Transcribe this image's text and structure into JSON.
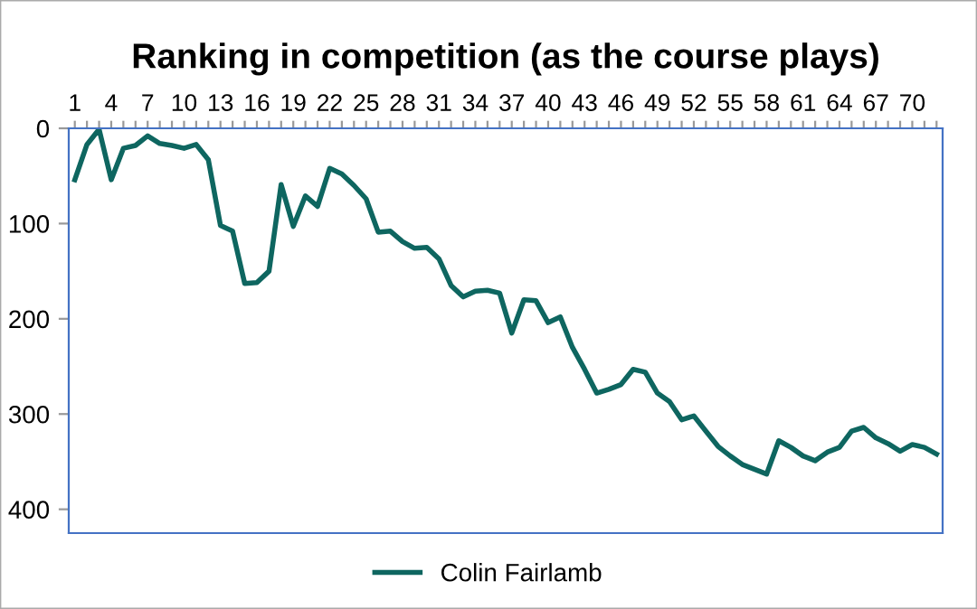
{
  "chart_data": {
    "type": "line",
    "title": "Ranking in competition (as the course plays)",
    "categories": [
      "1",
      null,
      null,
      "4",
      null,
      null,
      "7",
      null,
      null,
      "10",
      null,
      null,
      "13",
      null,
      null,
      "16",
      null,
      null,
      "19",
      null,
      null,
      "22",
      null,
      null,
      "25",
      null,
      null,
      "28",
      null,
      null,
      "31",
      null,
      null,
      "34",
      null,
      null,
      "37",
      null,
      null,
      "40",
      null,
      null,
      "43",
      null,
      null,
      "46",
      null,
      null,
      "49",
      null,
      null,
      "52",
      null,
      null,
      "55",
      null,
      null,
      "58",
      null,
      null,
      "61",
      null,
      null,
      "64",
      null,
      null,
      "67",
      null,
      null,
      "70",
      null,
      null
    ],
    "series": [
      {
        "name": "Colin Fairlamb",
        "color": "#0e6660",
        "values": [
          54,
          17,
          1,
          54,
          21,
          18,
          8,
          16,
          18,
          21,
          17,
          33,
          102,
          108,
          163,
          162,
          150,
          59,
          103,
          71,
          82,
          42,
          48,
          60,
          74,
          109,
          108,
          119,
          126,
          125,
          137,
          165,
          177,
          171,
          170,
          173,
          215,
          180,
          181,
          204,
          198,
          230,
          253,
          278,
          274,
          269,
          253,
          256,
          278,
          287,
          306,
          302,
          318,
          334,
          344,
          353,
          358,
          363,
          328,
          335,
          344,
          349,
          340,
          335,
          318,
          314,
          325,
          331,
          339,
          332,
          335,
          342
        ]
      }
    ],
    "ylim": [
      425,
      0
    ],
    "yticks": [
      0,
      100,
      200,
      300,
      400
    ],
    "grid": false,
    "legend": "bottom",
    "marker": "none",
    "line_style": "solid"
  }
}
